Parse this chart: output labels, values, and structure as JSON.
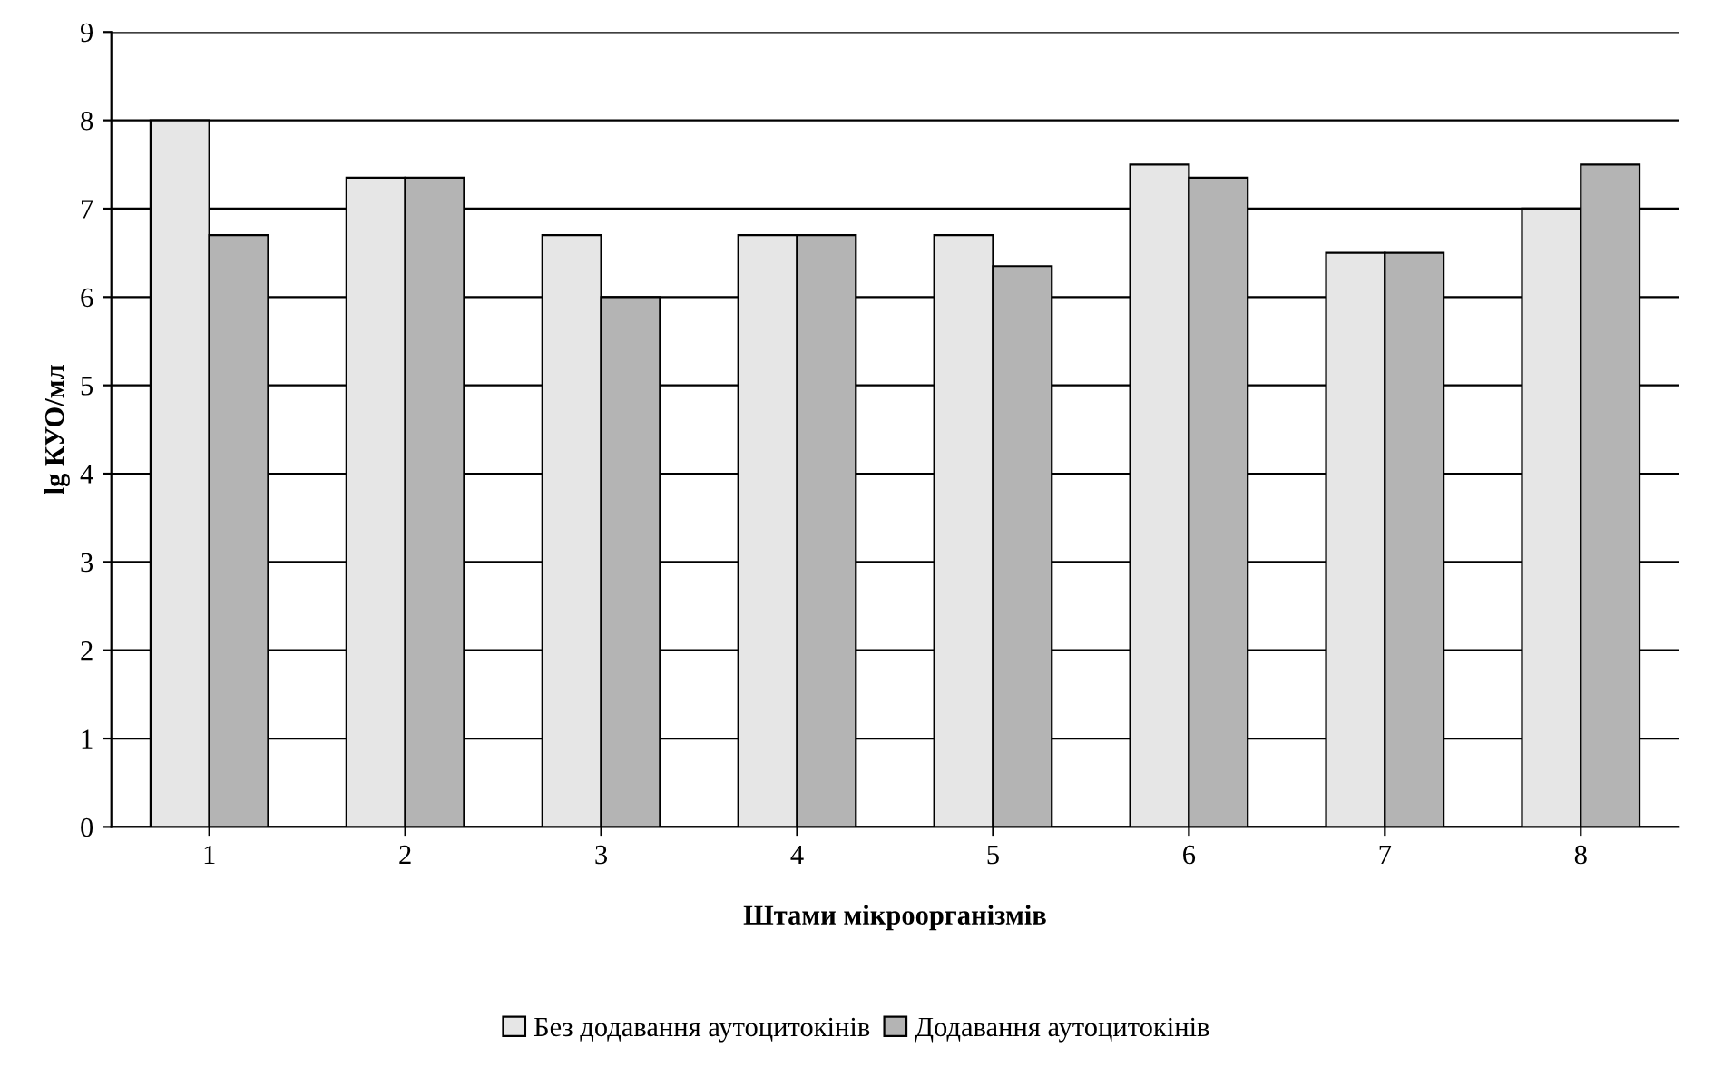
{
  "chart_data": {
    "type": "bar",
    "xlabel": "Штами мікроорганізмів",
    "ylabel": "lg КУО/мл",
    "categories": [
      "1",
      "2",
      "3",
      "4",
      "5",
      "6",
      "7",
      "8"
    ],
    "series": [
      {
        "name": "Без додавання аутоцитокінів",
        "color": "#e6e6e6",
        "values": [
          8.0,
          7.35,
          6.7,
          6.7,
          6.7,
          7.5,
          6.5,
          7.0
        ]
      },
      {
        "name": "Додавання аутоцитокінів",
        "color": "#b4b4b4",
        "values": [
          6.7,
          7.35,
          6.0,
          6.7,
          6.35,
          7.35,
          6.5,
          7.5
        ]
      }
    ],
    "ylim": [
      0,
      9
    ],
    "yticks": [
      0,
      1,
      2,
      3,
      4,
      5,
      6,
      7,
      8,
      9
    ],
    "grid": "y",
    "legend": "bottom"
  }
}
